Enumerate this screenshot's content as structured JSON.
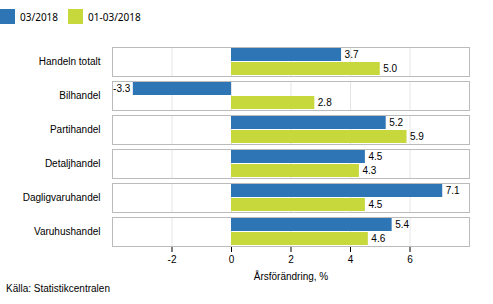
{
  "chart_data": {
    "type": "bar",
    "orientation": "horizontal",
    "categories": [
      "Varuhushandel",
      "Dagligvaruhandel",
      "Detaljhandel",
      "Partihandel",
      "Bilhandel",
      "Handeln totalt"
    ],
    "series": [
      {
        "name": "03/2018",
        "color": "#2E75B6",
        "values": [
          5.4,
          7.1,
          4.5,
          5.2,
          -3.3,
          3.7
        ],
        "value_labels": [
          "5.4",
          "7.1",
          "4.5",
          "5.2",
          "-3.3",
          "3.7"
        ]
      },
      {
        "name": "01-03/2018",
        "color": "#C7D83D",
        "values": [
          4.6,
          4.5,
          4.3,
          5.9,
          2.8,
          5.0
        ],
        "value_labels": [
          "4.6",
          "4.5",
          "4.3",
          "5.9",
          "2.8",
          "5.0"
        ]
      }
    ],
    "xlabel": "Årsförändring, %",
    "xlim": [
      -4,
      8
    ],
    "xticks": [
      -2,
      0,
      2,
      4,
      6
    ],
    "grid": true,
    "data_labels": true,
    "legend": "upper left",
    "annotations": [
      "Källa: Statistikcentralen"
    ]
  }
}
